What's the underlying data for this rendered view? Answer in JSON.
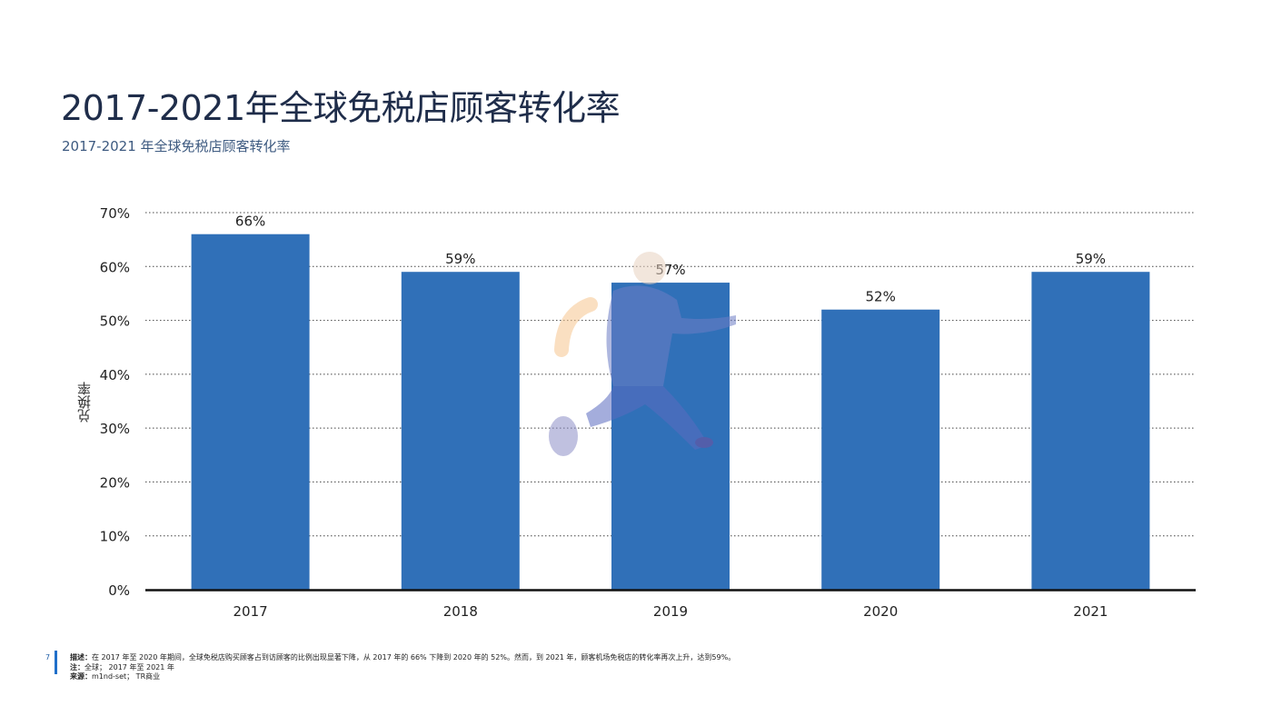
{
  "title": "2017-2021年全球免税店顾客转化率",
  "subtitle": "2017-2021 年全球免税店顾客转化率",
  "chart_data": {
    "type": "bar",
    "categories": [
      "2017",
      "2018",
      "2019",
      "2020",
      "2021"
    ],
    "values": [
      66,
      59,
      57,
      52,
      59
    ],
    "data_labels": [
      "66%",
      "59%",
      "57%",
      "52%",
      "59%"
    ],
    "ylabel": "兑换率",
    "ylim": [
      0,
      70
    ],
    "yticks": [
      "0%",
      "10%",
      "20%",
      "30%",
      "40%",
      "50%",
      "60%",
      "70%"
    ],
    "grid": true,
    "bar_color": "#3070b8"
  },
  "footer": {
    "page_number": "7",
    "description_label": "描述：",
    "description": "在 2017 年至 2020 年期间，全球免税店购买顾客占到访顾客的比例出现显著下降，从 2017 年的 66% 下降到 2020 年的 52%。然而，到 2021 年，顾客机场免税店的转化率再次上升，达到59%。",
    "note_label": "注：",
    "note": "全球； 2017 年至 2021 年",
    "source_label": "来源：",
    "source": "m1nd-set； TR商业"
  }
}
